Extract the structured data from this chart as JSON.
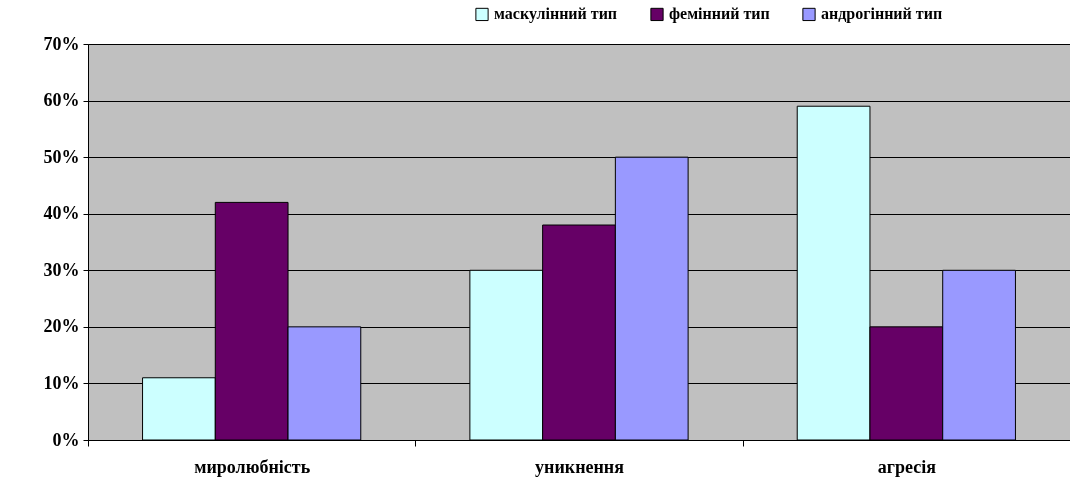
{
  "chart_data": {
    "type": "bar",
    "categories": [
      "миролюбність",
      "уникнення",
      "агресія"
    ],
    "series": [
      {
        "name": "маскулінний тип",
        "color": "#ccffff",
        "values": [
          11,
          30,
          59
        ]
      },
      {
        "name": "фемінний тип",
        "color": "#660066",
        "values": [
          42,
          38,
          20
        ]
      },
      {
        "name": "андрогінний тип",
        "color": "#9999ff",
        "values": [
          20,
          50,
          30
        ]
      }
    ],
    "ylim": [
      0,
      70
    ],
    "yticks": [
      {
        "value": 0,
        "label": "0%"
      },
      {
        "value": 10,
        "label": "10%"
      },
      {
        "value": 20,
        "label": "20%"
      },
      {
        "value": 30,
        "label": "30%"
      },
      {
        "value": 40,
        "label": "40%"
      },
      {
        "value": 50,
        "label": "50%"
      },
      {
        "value": 60,
        "label": "60%"
      },
      {
        "value": 70,
        "label": "70%"
      }
    ],
    "grid": "y",
    "legend": "top right"
  }
}
